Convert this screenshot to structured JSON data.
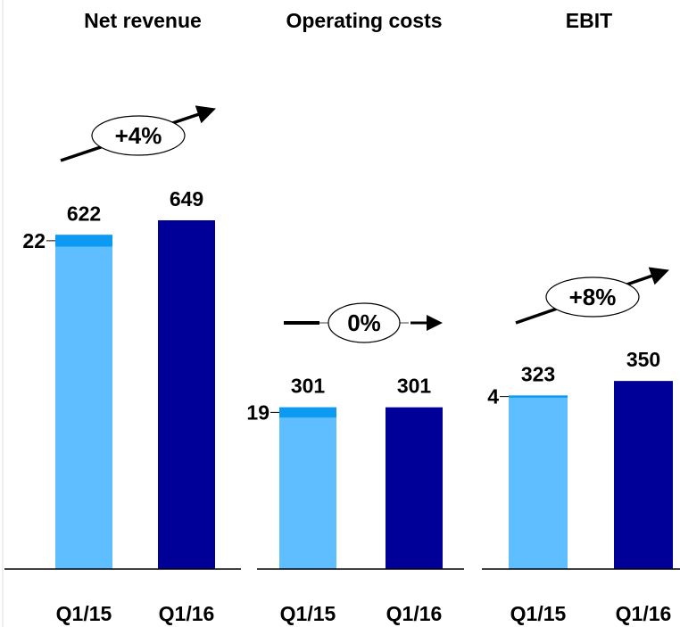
{
  "chart_data": [
    {
      "type": "bar",
      "title": "Net revenue",
      "categories": [
        "Q1/15",
        "Q1/16"
      ],
      "values": [
        622,
        649
      ],
      "inset_values": [
        22,
        null
      ],
      "colors": [
        "#5ebeff",
        "#000099"
      ],
      "inset_color": "#0c9af2",
      "annotation": "+4%",
      "trend": "up"
    },
    {
      "type": "bar",
      "title": "Operating costs",
      "categories": [
        "Q1/15",
        "Q1/16"
      ],
      "values": [
        301,
        301
      ],
      "inset_values": [
        19,
        null
      ],
      "colors": [
        "#5ebeff",
        "#000099"
      ],
      "inset_color": "#0c9af2",
      "annotation": "0%",
      "trend": "flat"
    },
    {
      "type": "bar",
      "title": "EBIT",
      "categories": [
        "Q1/15",
        "Q1/16"
      ],
      "values": [
        323,
        350
      ],
      "inset_values": [
        4,
        null
      ],
      "colors": [
        "#5ebeff",
        "#000099"
      ],
      "inset_color": "#0c9af2",
      "annotation": "+8%",
      "trend": "up"
    }
  ]
}
